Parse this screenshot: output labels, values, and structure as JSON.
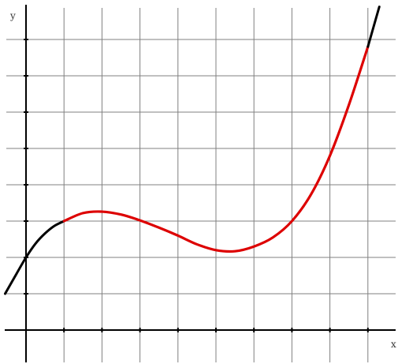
{
  "chart_data": {
    "type": "line",
    "title": "",
    "xlabel": "x",
    "ylabel": "y",
    "xlim": [
      -0.55,
      9.7
    ],
    "ylim": [
      -0.95,
      8.55
    ],
    "grid": true,
    "legend": "none",
    "series": [
      {
        "segment": "base",
        "color": "#000000",
        "x": [
          -0.55,
          -0.25,
          0,
          0.25,
          0.5,
          0.75,
          1
        ],
        "y": [
          1.0,
          1.55,
          2.0,
          2.38,
          2.66,
          2.87,
          3.0
        ]
      },
      {
        "segment": "highlighted",
        "color": "#dd0000",
        "x": [
          1,
          1.5,
          2,
          2.5,
          3,
          3.5,
          4,
          4.5,
          5,
          5.5,
          6,
          6.5,
          7,
          7.5,
          8,
          8.5,
          9
        ],
        "y": [
          3.0,
          3.22,
          3.26,
          3.18,
          3.02,
          2.82,
          2.6,
          2.36,
          2.2,
          2.17,
          2.3,
          2.55,
          3.0,
          3.73,
          4.8,
          6.2,
          7.8
        ]
      },
      {
        "segment": "base",
        "color": "#000000",
        "x": [
          9,
          9.15,
          9.3
        ],
        "y": [
          7.8,
          8.35,
          8.9
        ]
      }
    ]
  }
}
